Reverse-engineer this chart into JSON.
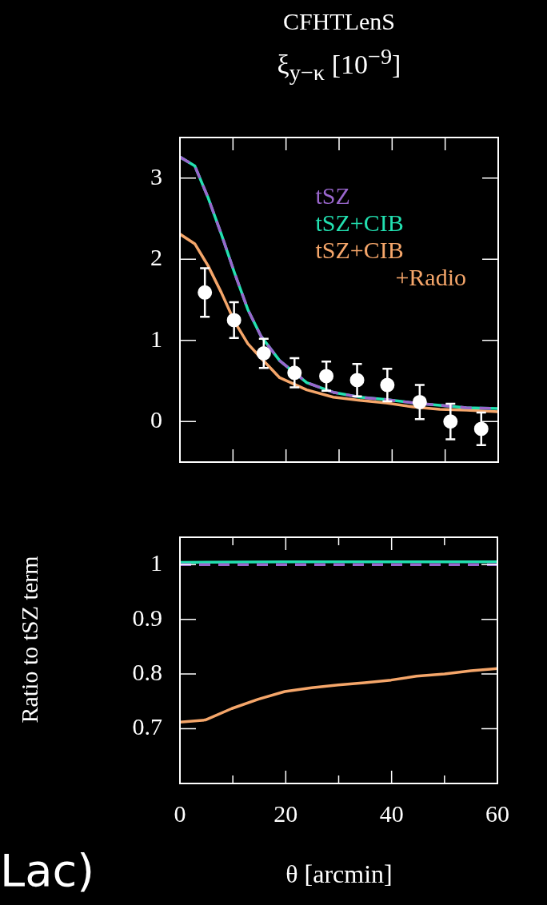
{
  "chart_data": [
    {
      "type": "line",
      "title": "CFHTLenS",
      "ylabel": "ξ$_{y−κ}$ [10$^{−9}$]",
      "xlim": [
        0,
        60
      ],
      "ylim": [
        -0.5,
        3.5
      ],
      "xticks": [
        0,
        10,
        20,
        30,
        40,
        50,
        60
      ],
      "yticks": [
        0,
        1,
        2,
        3
      ],
      "tick_labels": "y",
      "grid": false,
      "legend": "top right",
      "series": [
        {
          "type": "scatter",
          "color": "#ffffff",
          "marker": "circle",
          "x": [
            4.7,
            10.2,
            15.8,
            21.6,
            27.6,
            33.4,
            39.1,
            45.2,
            51,
            56.8
          ],
          "values": [
            1.59,
            1.25,
            0.84,
            0.6,
            0.56,
            0.51,
            0.45,
            0.24,
            0,
            -0.09
          ],
          "errors": [
            0.3,
            0.22,
            0.18,
            0.18,
            0.18,
            0.2,
            0.2,
            0.21,
            0.22,
            0.2
          ]
        },
        {
          "name": "tSZ",
          "color": "#9966cc",
          "line_style": "dashed",
          "x": [
            0,
            2.8,
            5.3,
            7.8,
            10.3,
            12.8,
            15.3,
            18.8,
            23.9,
            28.9,
            33.9,
            38.9,
            44,
            49,
            54,
            60
          ],
          "values": [
            3.26,
            3.15,
            2.76,
            2.31,
            1.83,
            1.38,
            1.05,
            0.75,
            0.48,
            0.36,
            0.3,
            0.27,
            0.23,
            0.2,
            0.17,
            0.16
          ]
        },
        {
          "name": "tSZ+CIB",
          "color": "#22e0b0",
          "line_style": "solid",
          "x": [
            0,
            2.8,
            5.3,
            7.8,
            10.3,
            12.8,
            15.3,
            18.8,
            23.9,
            28.9,
            33.9,
            38.9,
            44,
            49,
            54,
            60
          ],
          "values": [
            3.26,
            3.15,
            2.76,
            2.31,
            1.83,
            1.38,
            1.05,
            0.75,
            0.48,
            0.36,
            0.3,
            0.27,
            0.23,
            0.2,
            0.17,
            0.16
          ]
        },
        {
          "name": "tSZ+CIB +Radio",
          "color": "#f5a66a",
          "line_style": "solid",
          "x": [
            0,
            2.8,
            5.3,
            7.8,
            10.3,
            12.8,
            15.3,
            18.8,
            23.9,
            28.9,
            33.9,
            38.9,
            44,
            49,
            54,
            60
          ],
          "values": [
            2.31,
            2.19,
            1.92,
            1.59,
            1.23,
            0.96,
            0.78,
            0.54,
            0.39,
            0.3,
            0.26,
            0.23,
            0.18,
            0.15,
            0.14,
            0.12
          ]
        }
      ]
    },
    {
      "type": "line",
      "xlabel": "θ [arcmin]",
      "ylabel": "Ratio to tSZ term",
      "xlim": [
        0,
        60
      ],
      "ylim": [
        0.6,
        1.05
      ],
      "xticks": [
        0,
        {
          "value": 10,
          "label": null
        },
        20,
        {
          "value": 30,
          "label": null
        },
        40,
        {
          "value": 50,
          "label": null
        },
        60
      ],
      "yticks": [
        0.7,
        0.8,
        0.9,
        1
      ],
      "grid": false,
      "annotations": [
        "Lac)"
      ],
      "series": [
        {
          "color": "#9966cc",
          "line_style": "dashed",
          "x": [
            0,
            60
          ],
          "values": [
            1,
            1
          ]
        },
        {
          "color": "#22e0b0",
          "line_style": "solid",
          "x": [
            0,
            20,
            40,
            60
          ],
          "values": [
            1.004,
            1.005,
            1.005,
            1.005
          ]
        },
        {
          "color": "#f5a66a",
          "line_style": "solid",
          "x": [
            0,
            4.8,
            9.8,
            14.8,
            19.8,
            24.9,
            29.9,
            34.9,
            39.9,
            44.7,
            50,
            55,
            60
          ],
          "values": [
            0.712,
            0.716,
            0.737,
            0.754,
            0.768,
            0.775,
            0.78,
            0.784,
            0.789,
            0.796,
            0.8,
            0.806,
            0.81
          ]
        }
      ]
    }
  ]
}
